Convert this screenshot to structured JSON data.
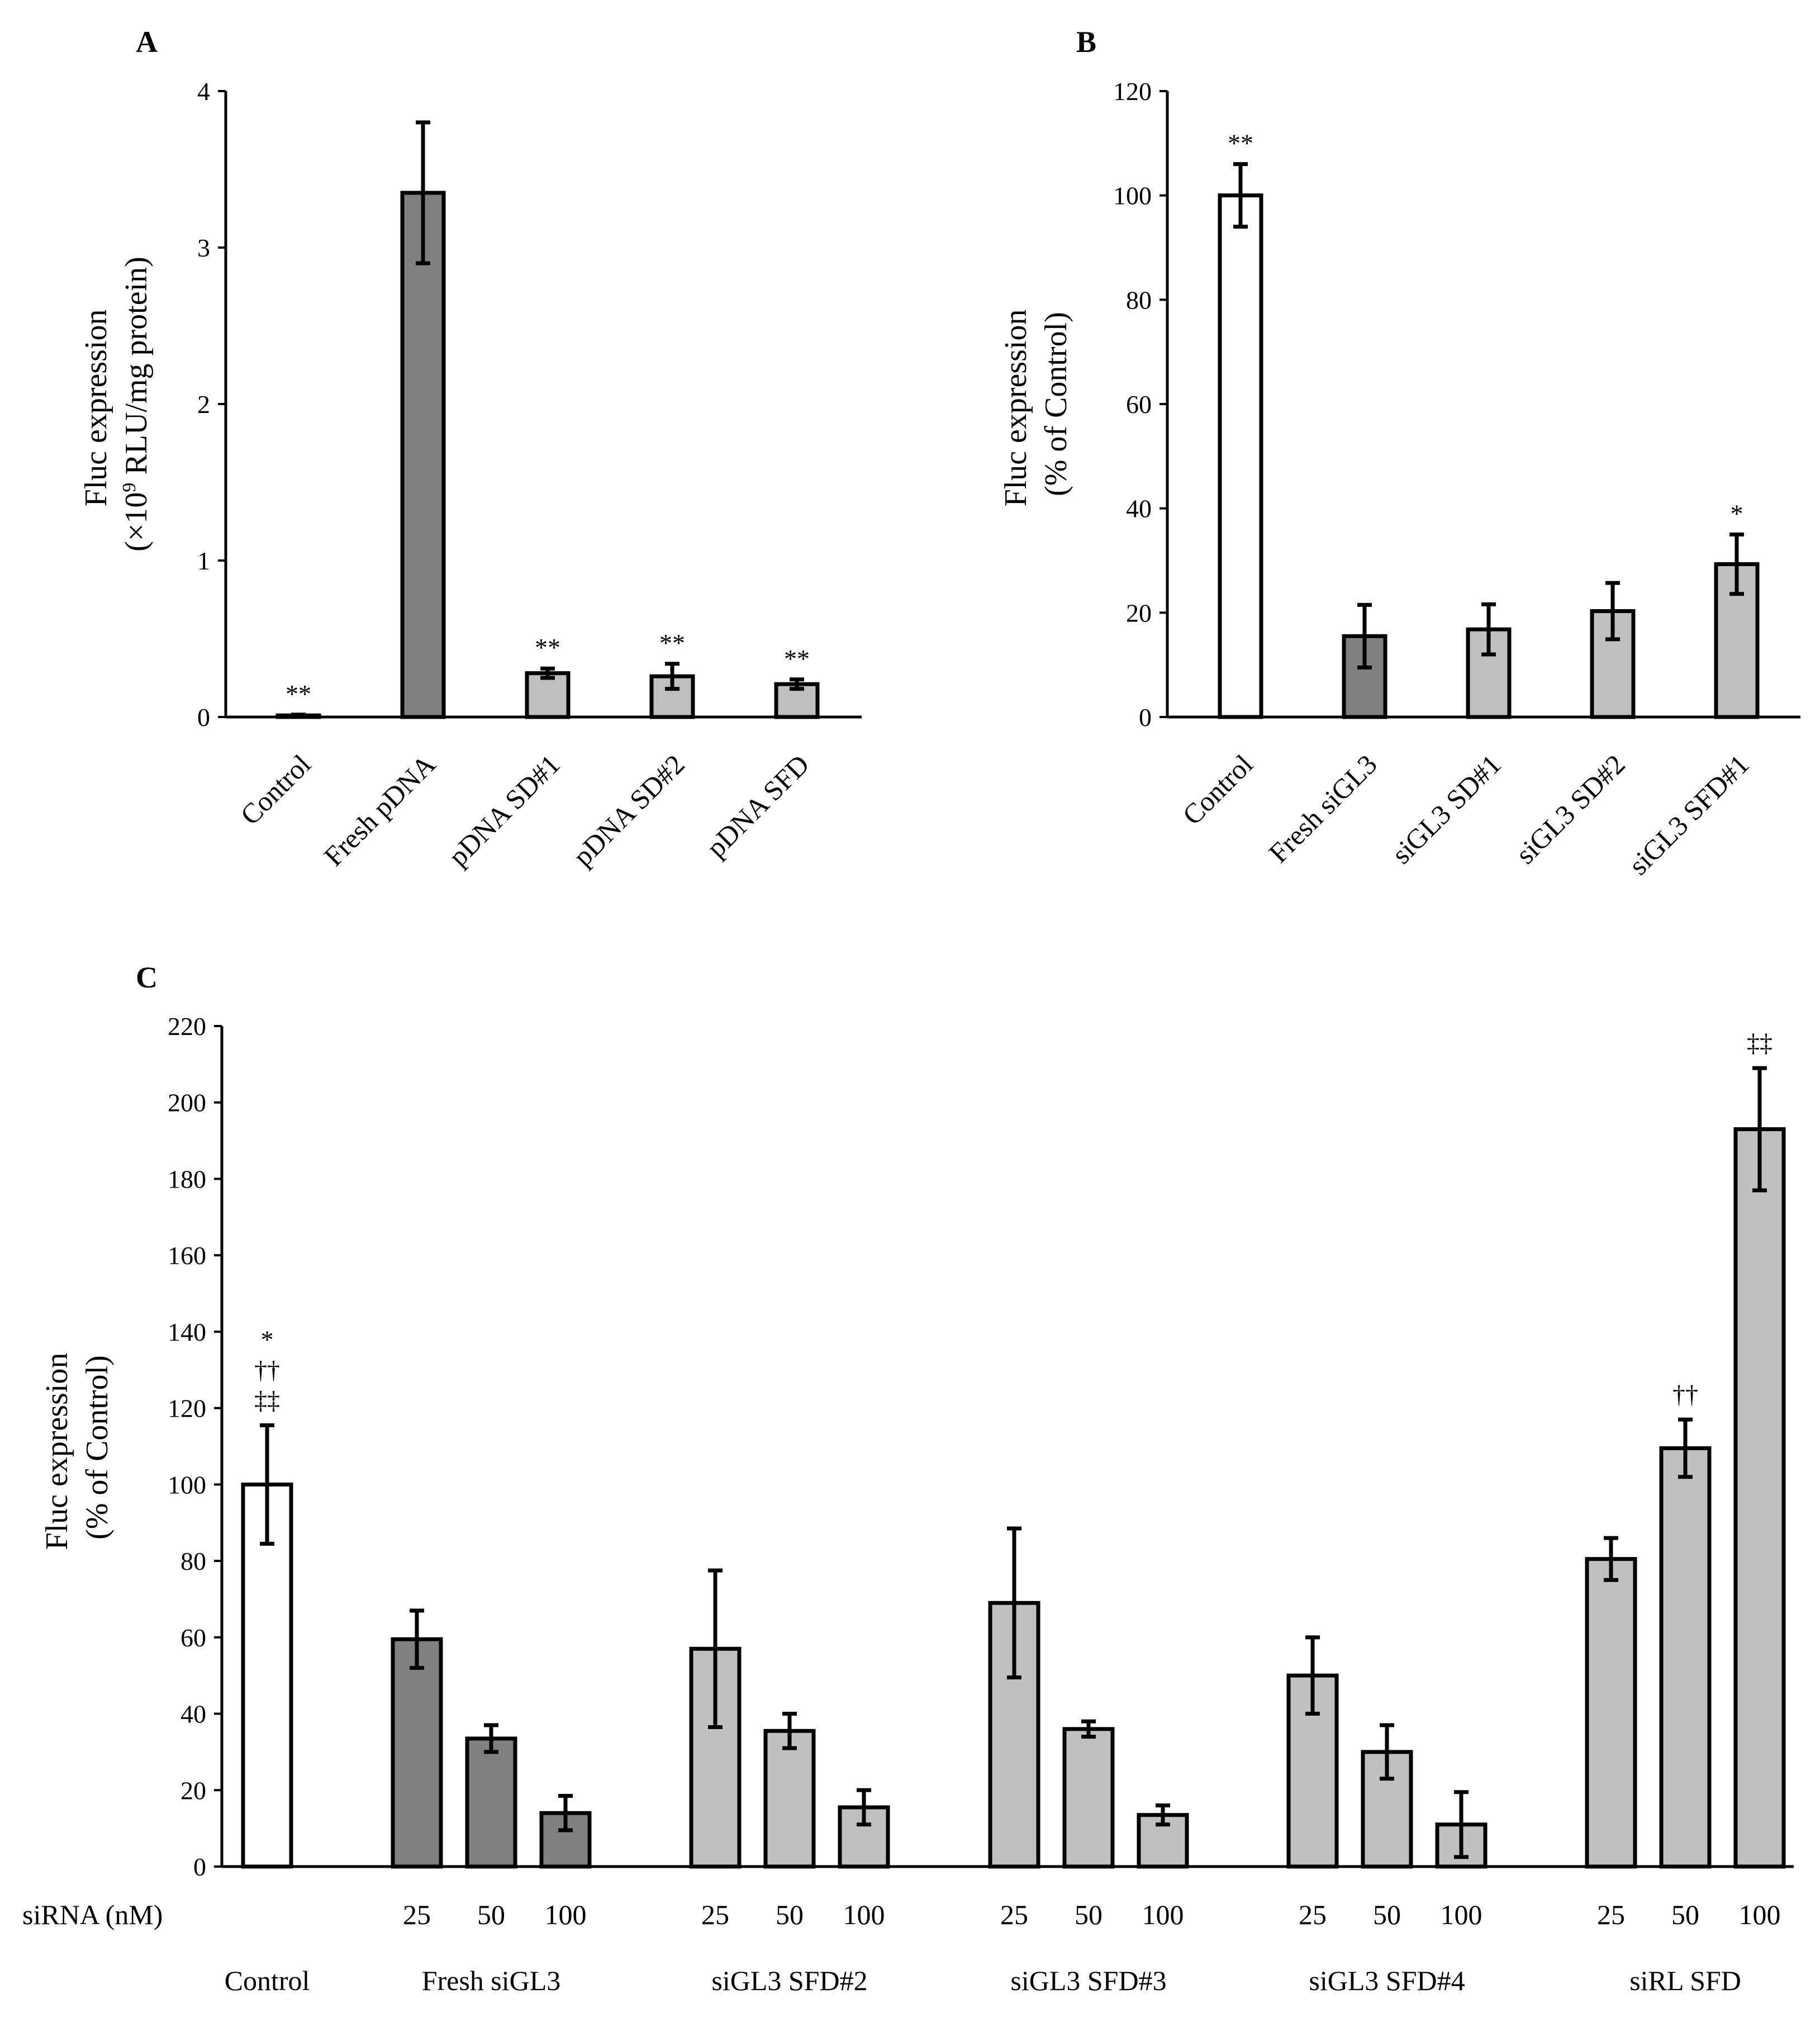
{
  "chart_data": [
    {
      "panel": "A",
      "type": "bar",
      "ylabel_lines": [
        "Fluc expression",
        "(×10",
        "9",
        " RLU/mg protein)"
      ],
      "ylim": [
        0,
        4
      ],
      "yticks": [
        0,
        1,
        2,
        3,
        4
      ],
      "categories": [
        "Control",
        "Fresh pDNA",
        "pDNA SD#1",
        "pDNA SD#2",
        "pDNA SFD"
      ],
      "values": [
        0.01,
        3.35,
        0.28,
        0.26,
        0.21
      ],
      "errors": [
        0.005,
        0.45,
        0.03,
        0.08,
        0.03
      ],
      "fills": [
        "#ffffff",
        "#808080",
        "#c0c0c0",
        "#c0c0c0",
        "#c0c0c0"
      ],
      "annotations": [
        [
          "**"
        ],
        [],
        [
          "**"
        ],
        [
          "**"
        ],
        [
          "**"
        ]
      ]
    },
    {
      "panel": "B",
      "type": "bar",
      "ylabel_lines": [
        "Fluc expression",
        "(% of Control)"
      ],
      "ylim": [
        0,
        120
      ],
      "yticks": [
        0,
        20,
        40,
        60,
        80,
        100,
        120
      ],
      "categories": [
        "Control",
        "Fresh siGL3",
        "siGL3 SD#1",
        "siGL3 SD#2",
        "siGL3 SFD#1"
      ],
      "values": [
        100,
        15.5,
        16.8,
        20.3,
        29.3
      ],
      "errors": [
        6,
        6,
        4.8,
        5.4,
        5.7
      ],
      "fills": [
        "#ffffff",
        "#808080",
        "#c0c0c0",
        "#c0c0c0",
        "#c0c0c0"
      ],
      "annotations": [
        [
          "**"
        ],
        [],
        [],
        [],
        [
          "*"
        ]
      ]
    },
    {
      "panel": "C",
      "type": "bar",
      "ylabel_lines": [
        "Fluc expression",
        "(% of Control)"
      ],
      "ylim": [
        0,
        220
      ],
      "yticks": [
        0,
        20,
        40,
        60,
        80,
        100,
        120,
        140,
        160,
        180,
        200,
        220
      ],
      "xrow_label": "siRNA (nM)",
      "groups": [
        {
          "name": "Control",
          "doses": [
            ""
          ],
          "values": [
            100
          ],
          "errors": [
            15.5
          ],
          "fill": "#ffffff",
          "annotations": [
            [
              "*",
              "††",
              "‡‡"
            ]
          ]
        },
        {
          "name": "Fresh siGL3",
          "doses": [
            "25",
            "50",
            "100"
          ],
          "values": [
            59.5,
            33.5,
            14
          ],
          "errors": [
            7.5,
            3.5,
            4.5
          ],
          "fill": "#808080",
          "annotations": [
            [],
            [],
            []
          ]
        },
        {
          "name": "siGL3 SFD#2",
          "doses": [
            "25",
            "50",
            "100"
          ],
          "values": [
            57,
            35.5,
            15.5
          ],
          "errors": [
            20.5,
            4.5,
            4.5
          ],
          "fill": "#c0c0c0",
          "annotations": [
            [],
            [],
            []
          ]
        },
        {
          "name": "siGL3 SFD#3",
          "doses": [
            "25",
            "50",
            "100"
          ],
          "values": [
            69,
            36,
            13.5
          ],
          "errors": [
            19.5,
            2,
            2.5
          ],
          "fill": "#c0c0c0",
          "annotations": [
            [],
            [],
            []
          ]
        },
        {
          "name": "siGL3 SFD#4",
          "doses": [
            "25",
            "50",
            "100"
          ],
          "values": [
            50,
            30,
            11
          ],
          "errors": [
            10,
            7,
            8.5
          ],
          "fill": "#c0c0c0",
          "annotations": [
            [],
            [],
            []
          ]
        },
        {
          "name": "siRL SFD",
          "doses": [
            "25",
            "50",
            "100"
          ],
          "values": [
            80.5,
            109.5,
            193
          ],
          "errors": [
            5.5,
            7.5,
            16
          ],
          "fill": "#c0c0c0",
          "annotations": [
            [],
            [
              "††"
            ],
            [
              "‡‡"
            ]
          ]
        }
      ]
    }
  ]
}
